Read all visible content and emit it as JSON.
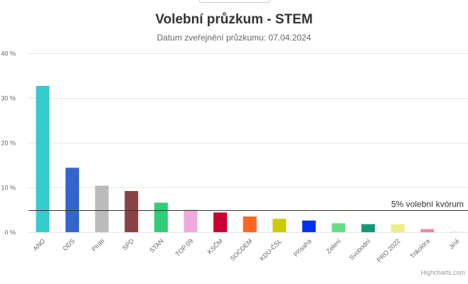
{
  "chart_data": {
    "type": "bar",
    "title": "Volební průzkum - STEM",
    "subtitle": "Datum zveřejnění průzkumu: 07.04.2024",
    "categories": [
      "ANO",
      "ODS",
      "Piráti",
      "SPD",
      "STAN",
      "TOP 09",
      "KSČM",
      "SOCDEM",
      "KDU-ČSL",
      "Přísaha",
      "Zelení",
      "Svobodní",
      "PRO 2022",
      "Trikolóra",
      "Jiné"
    ],
    "values": [
      32.7,
      14.4,
      10.4,
      9.2,
      6.6,
      5.0,
      4.4,
      3.5,
      3.0,
      2.6,
      2.0,
      1.8,
      1.8,
      0.7,
      0.1
    ],
    "colors": [
      "#37cccc",
      "#3366cc",
      "#bbbbbb",
      "#884444",
      "#33cc77",
      "#eeaadd",
      "#cc0033",
      "#ff6622",
      "#cccc00",
      "#0033ee",
      "#66dd88",
      "#119977",
      "#eeee88",
      "#ee88aa",
      "#dddddd"
    ],
    "ylim": [
      0,
      40
    ],
    "yticks": [
      0,
      10,
      20,
      30,
      40
    ],
    "ytick_suffix": " %",
    "grid": true,
    "threshold": {
      "value": 5,
      "label": "5% volební kvórum"
    }
  },
  "credits": "Highcharts.com"
}
